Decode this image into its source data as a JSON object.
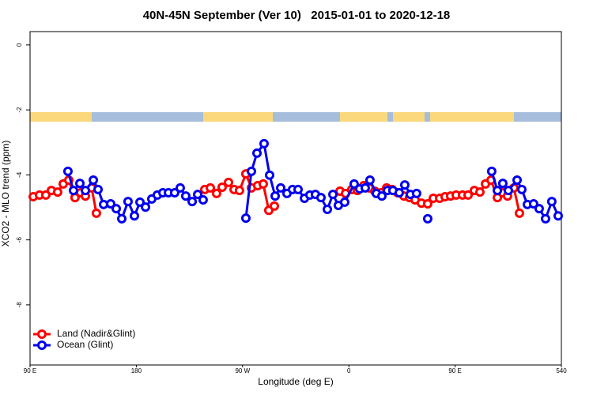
{
  "chart_data": {
    "type": "line",
    "title": "40N-45N September (Ver 10)   2015-01-01 to 2020-12-18",
    "x_label": "Longitude (deg E)",
    "y_label": "XCO2 - MLO trend (ppm)",
    "xlim": [
      90,
      540
    ],
    "ylim": [
      -9.85,
      0.41
    ],
    "xticks": [
      {
        "value": 90,
        "label": "90 E"
      },
      180,
      {
        "value": 270,
        "label": "90 W"
      },
      {
        "value": 360,
        "label": "0"
      },
      {
        "value": 450,
        "label": "90 E"
      },
      540
    ],
    "yticks": [
      0,
      -2,
      -4,
      -6,
      -8
    ],
    "legend": "bottomleft",
    "series": [
      {
        "name": "Land (Nadir&Glint)",
        "color": "#ff0000",
        "x": [
          92.7,
          98.0,
          103.4,
          108.1,
          113.4,
          118.1,
          122.8,
          128.1,
          132.8,
          136.9,
          142.2,
          146.2,
          null,
          238.0,
          242.7,
          248.0,
          252.7,
          258.1,
          262.8,
          267.4,
          272.8,
          277.5,
          282.8,
          287.5,
          292.2,
          296.9,
          null,
          352.5,
          357.2,
          362.5,
          367.2,
          372.6,
          377.3,
          382.0,
          387.3,
          392.0,
          396.7,
          401.4,
          406.7,
          411.4,
          416.1,
          421.5,
          426.8,
          431.5,
          436.9,
          441.5,
          446.2,
          450.9,
          456.3,
          461.0,
          466.3,
          471.0,
          475.7,
          480.4,
          485.8,
          490.4,
          494.4,
          499.8,
          504.5
        ],
        "values": [
          -4.67,
          -4.62,
          -4.62,
          -4.48,
          -4.53,
          -4.28,
          -4.16,
          -4.7,
          -4.55,
          -4.65,
          -4.4,
          -5.18,
          null,
          -4.45,
          -4.4,
          -4.57,
          -4.38,
          -4.23,
          -4.45,
          -4.48,
          -3.97,
          -4.4,
          -4.33,
          -4.28,
          -5.09,
          -4.96,
          null,
          -4.5,
          -4.57,
          -4.45,
          -4.48,
          -4.33,
          -4.4,
          -4.5,
          -4.55,
          -4.4,
          -4.45,
          -4.55,
          -4.65,
          -4.7,
          -4.77,
          -4.87,
          -4.89,
          -4.72,
          -4.72,
          -4.67,
          -4.65,
          -4.62,
          -4.62,
          -4.62,
          -4.48,
          -4.53,
          -4.28,
          -4.16,
          -4.7,
          -4.55,
          -4.65,
          -4.4,
          -5.18
        ]
      },
      {
        "name": "Ocean (Glint)",
        "color": "#0000ee",
        "x": [
          122.1,
          126.8,
          132.2,
          136.9,
          143.6,
          147.6,
          152.3,
          158.3,
          163.0,
          167.7,
          173.0,
          178.4,
          183.1,
          187.8,
          193.1,
          197.8,
          202.5,
          207.2,
          212.5,
          217.2,
          221.9,
          227.3,
          232.0,
          236.6,
          null,
          272.8,
          277.5,
          282.2,
          288.2,
          292.9,
          297.6,
          302.3,
          307.6,
          312.3,
          317.0,
          322.4,
          327.0,
          331.7,
          336.4,
          341.8,
          346.5,
          351.1,
          356.5,
          364.5,
          369.2,
          373.9,
          377.9,
          383.3,
          388.0,
          392.7,
          397.3,
          402.7,
          407.4,
          412.1,
          417.4,
          null,
          426.8,
          null,
          481.0,
          485.8,
          490.4,
          495.1,
          502.5,
          506.5,
          511.2,
          516.5,
          521.2,
          526.6,
          531.9,
          537.3
        ],
        "values": [
          -3.89,
          -4.48,
          -4.26,
          -4.48,
          -4.16,
          -4.45,
          -4.91,
          -4.89,
          -5.04,
          -5.35,
          -4.82,
          -5.26,
          -4.84,
          -4.99,
          -4.74,
          -4.62,
          -4.55,
          -4.55,
          -4.55,
          -4.4,
          -4.65,
          -4.82,
          -4.6,
          -4.77,
          null,
          -5.33,
          -3.89,
          -3.33,
          -3.04,
          -4.01,
          -4.65,
          -4.4,
          -4.57,
          -4.45,
          -4.45,
          -4.72,
          -4.62,
          -4.6,
          -4.7,
          -5.06,
          -4.6,
          -4.94,
          -4.84,
          -4.28,
          -4.43,
          -4.4,
          -4.16,
          -4.57,
          -4.65,
          -4.48,
          -4.48,
          -4.55,
          -4.31,
          -4.6,
          -4.57,
          null,
          -5.35,
          null,
          -3.89,
          -4.48,
          -4.26,
          -4.48,
          -4.16,
          -4.45,
          -4.91,
          -4.89,
          -5.04,
          -5.35,
          -4.82,
          -5.26
        ]
      }
    ]
  }
}
